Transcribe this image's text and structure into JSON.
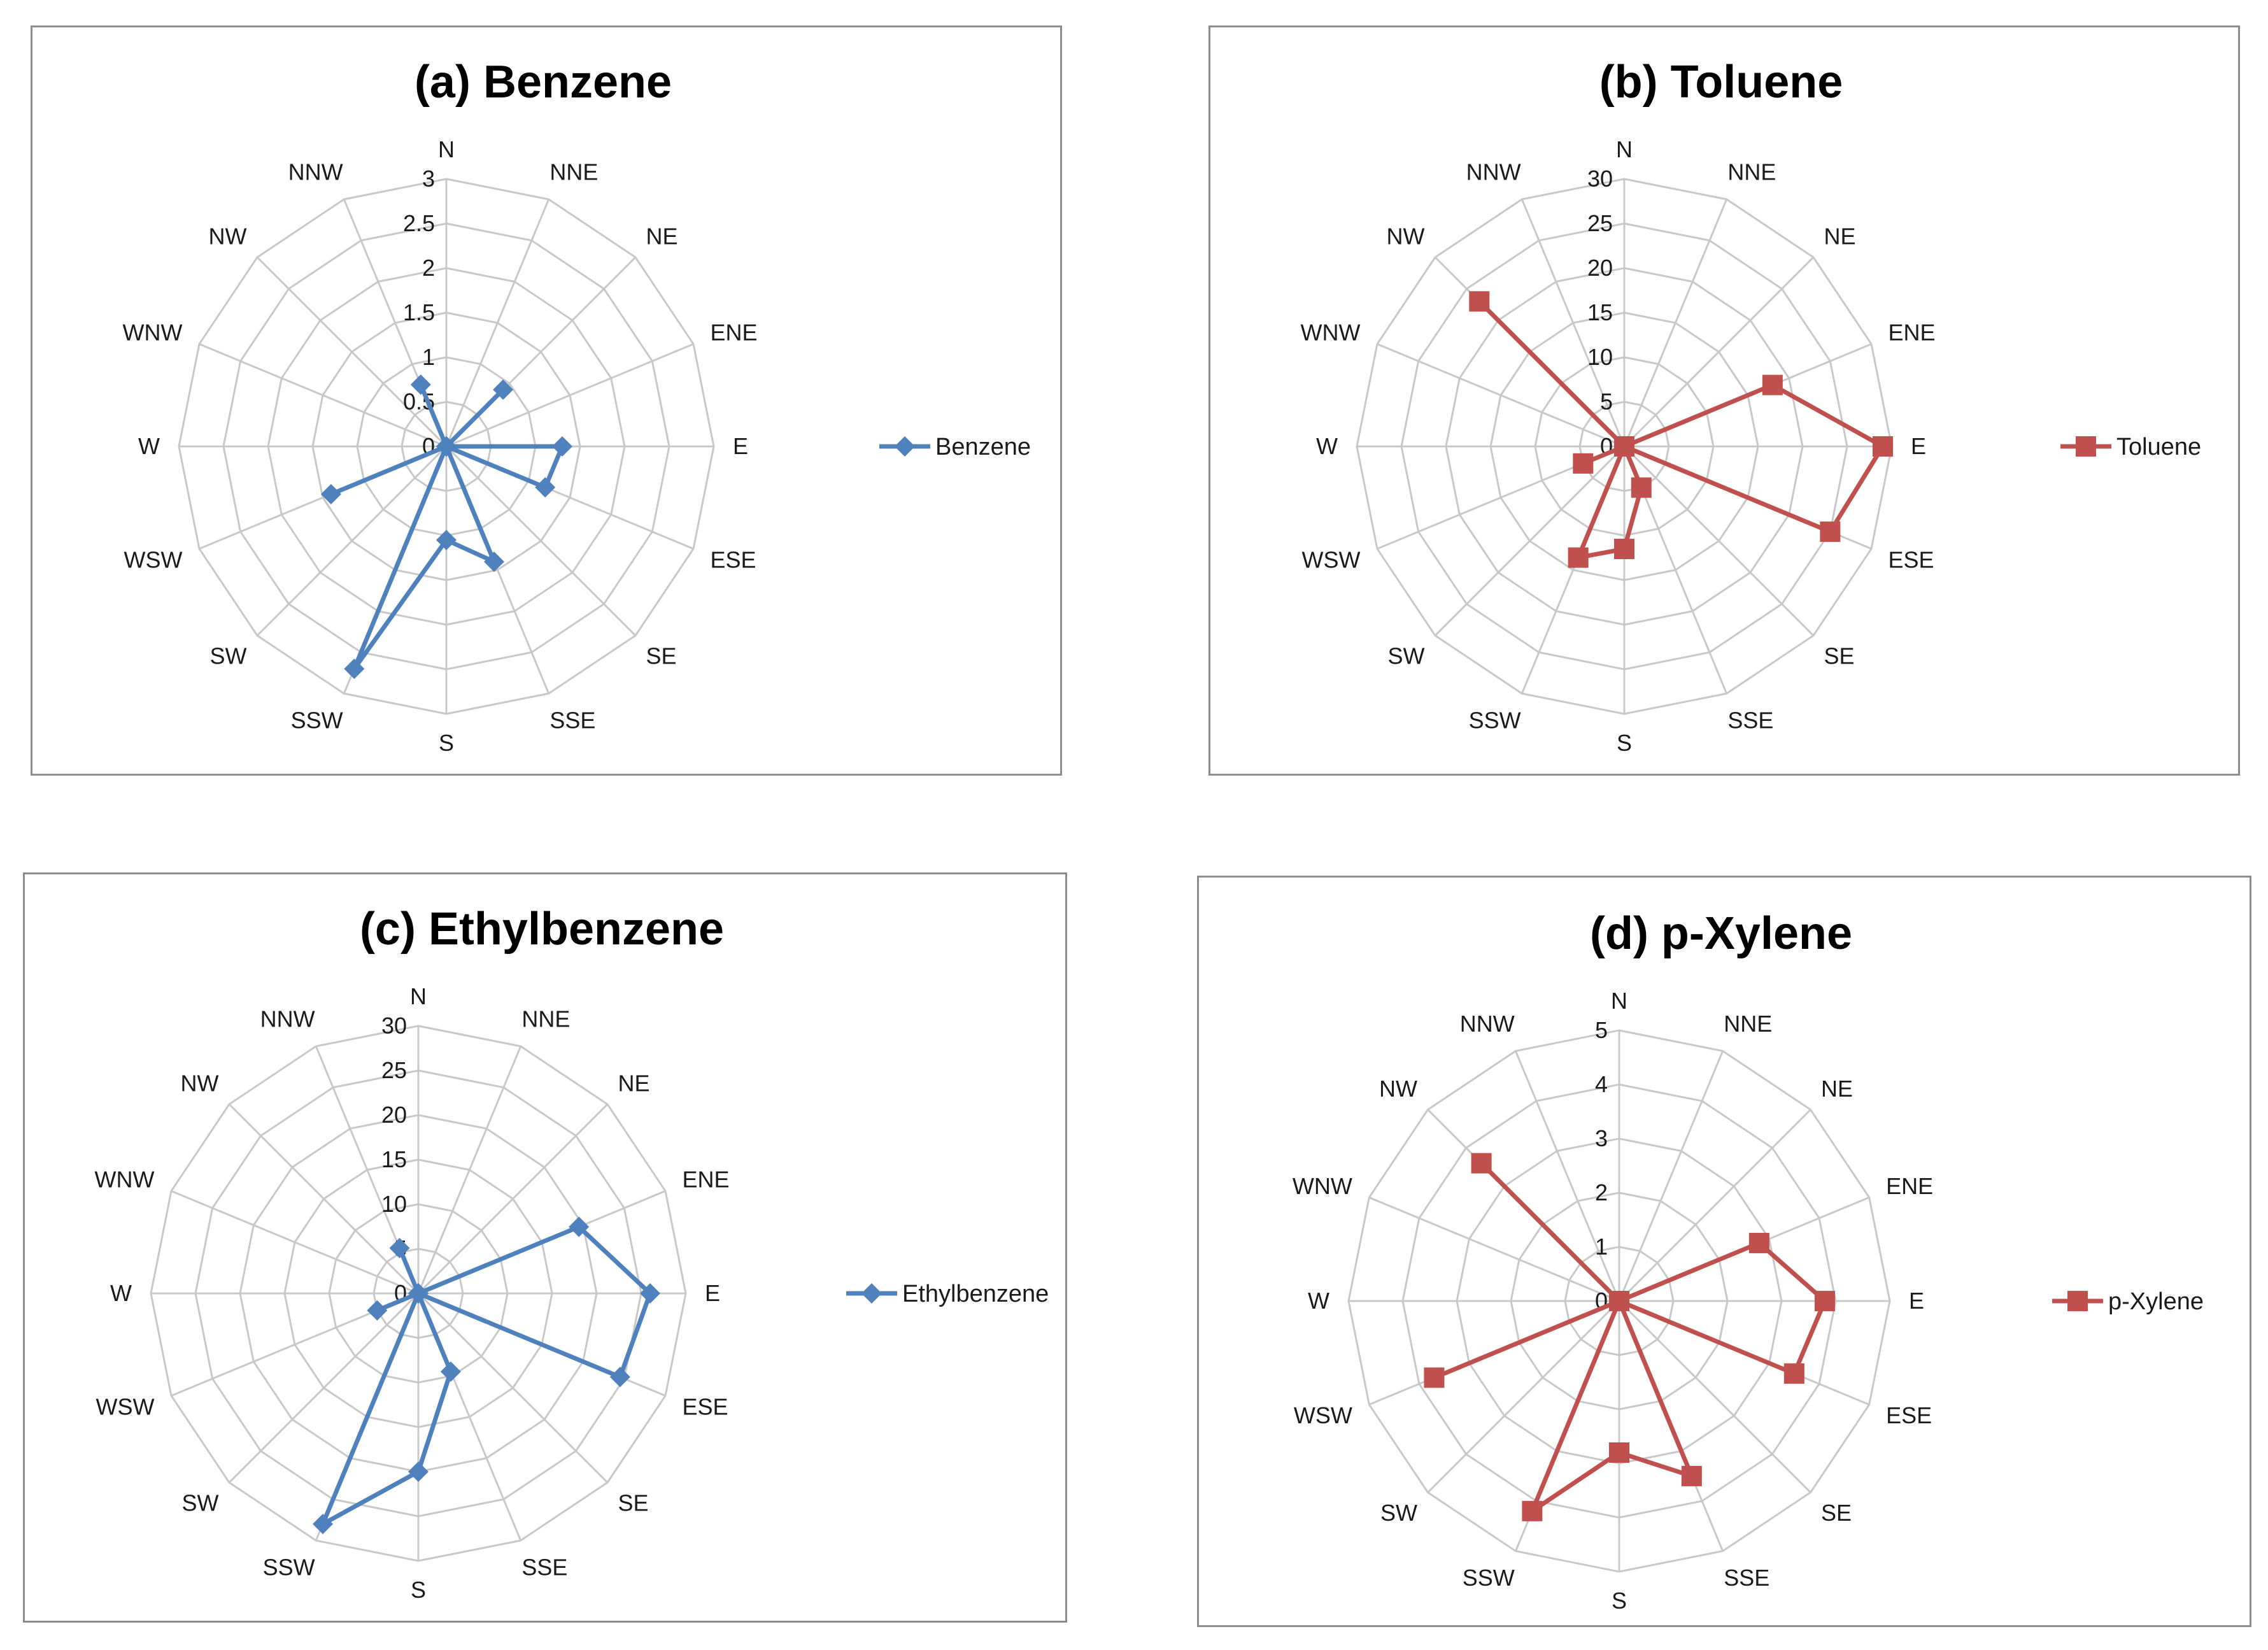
{
  "chart_data": [
    {
      "type": "radar",
      "title": "(a) Benzene",
      "directions": [
        "N",
        "NNE",
        "NE",
        "ENE",
        "E",
        "ESE",
        "SE",
        "SSE",
        "S",
        "SSW",
        "SW",
        "WSW",
        "W",
        "WNW",
        "NW",
        "NNW"
      ],
      "ticks": [
        "0",
        "0.5",
        "1",
        "1.5",
        "2",
        "2.5",
        "3"
      ],
      "rmax": 3,
      "series": [
        {
          "name": "Benzene",
          "values": [
            0,
            0,
            0.9,
            0,
            1.3,
            1.2,
            0,
            1.4,
            1.05,
            2.7,
            0,
            1.4,
            0,
            0,
            0,
            0.75
          ],
          "color": "#4f81bd",
          "marker": "diamond"
        }
      ],
      "legend": "right"
    },
    {
      "type": "radar",
      "title": "(b) Toluene",
      "directions": [
        "N",
        "NNE",
        "NE",
        "ENE",
        "E",
        "ESE",
        "SE",
        "SSE",
        "S",
        "SSW",
        "SW",
        "WSW",
        "W",
        "WNW",
        "NW",
        "NNW"
      ],
      "ticks": [
        "0",
        "5",
        "10",
        "15",
        "20",
        "25",
        "30"
      ],
      "rmax": 30,
      "series": [
        {
          "name": "Toluene",
          "values": [
            0,
            0,
            0,
            18,
            29,
            25,
            0,
            5,
            11.5,
            13.5,
            0,
            5,
            0,
            0,
            23,
            0
          ],
          "color": "#c0504d",
          "marker": "square"
        }
      ],
      "legend": "right"
    },
    {
      "type": "radar",
      "title": "(c) Ethylbenzene",
      "directions": [
        "N",
        "NNE",
        "NE",
        "ENE",
        "E",
        "ESE",
        "SE",
        "SSE",
        "S",
        "SSW",
        "SW",
        "WSW",
        "W",
        "WNW",
        "NW",
        "NNW"
      ],
      "ticks": [
        "0",
        "5",
        "10",
        "15",
        "20",
        "25",
        "30"
      ],
      "rmax": 30,
      "series": [
        {
          "name": "Ethylbenzene",
          "values": [
            0,
            0,
            0,
            19.5,
            26,
            24.5,
            0,
            9.5,
            20,
            28,
            0,
            5,
            0,
            0,
            0,
            5.5
          ],
          "color": "#4f81bd",
          "marker": "diamond"
        }
      ],
      "legend": "right"
    },
    {
      "type": "radar",
      "title": "(d) p-Xylene",
      "directions": [
        "N",
        "NNE",
        "NE",
        "ENE",
        "E",
        "ESE",
        "SE",
        "SSE",
        "S",
        "SSW",
        "SW",
        "WSW",
        "W",
        "WNW",
        "NW",
        "NNW"
      ],
      "ticks": [
        "0",
        "1",
        "2",
        "3",
        "4",
        "5"
      ],
      "rmax": 5,
      "series": [
        {
          "name": "p-Xylene",
          "values": [
            0,
            0,
            0,
            2.8,
            3.8,
            3.5,
            0,
            3.5,
            2.8,
            4.2,
            0,
            3.7,
            0,
            0,
            3.6,
            0
          ],
          "color": "#c0504d",
          "marker": "square"
        }
      ],
      "legend": "right"
    }
  ]
}
